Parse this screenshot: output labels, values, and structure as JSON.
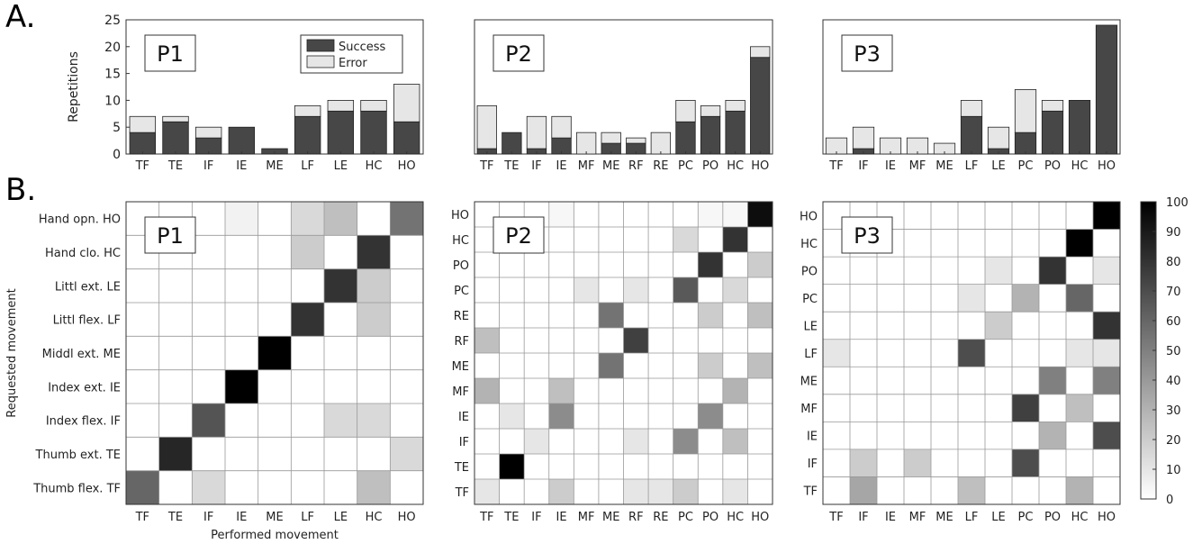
{
  "figure": {
    "panel_a_label": "A.",
    "panel_b_label": "B.",
    "colorbar_ticks": [
      0,
      10,
      20,
      30,
      40,
      50,
      60,
      70,
      80,
      90,
      100
    ]
  },
  "colors": {
    "success": "#474747",
    "error": "#e6e6e6",
    "axis": "#333333",
    "grid": "#999999"
  },
  "chart_data": [
    {
      "type": "bar",
      "title": "P1",
      "ylabel": "Repetitions",
      "xlabel": "",
      "stacked": true,
      "ylim": [
        0,
        25
      ],
      "yticks": [
        0,
        5,
        10,
        15,
        20,
        25
      ],
      "legend_position": "top-right",
      "categories": [
        "TF",
        "TE",
        "IF",
        "IE",
        "ME",
        "LF",
        "LE",
        "HC",
        "HO"
      ],
      "series": [
        {
          "name": "Success",
          "values": [
            4,
            6,
            3,
            5,
            1,
            7,
            8,
            8,
            6
          ]
        },
        {
          "name": "Error",
          "values": [
            3,
            1,
            2,
            0,
            0,
            2,
            2,
            2,
            7
          ]
        }
      ]
    },
    {
      "type": "bar",
      "title": "P2",
      "stacked": true,
      "ylim": [
        0,
        25
      ],
      "categories": [
        "TF",
        "TE",
        "IF",
        "IE",
        "MF",
        "ME",
        "RF",
        "RE",
        "PC",
        "PO",
        "HC",
        "HO"
      ],
      "series": [
        {
          "name": "Success",
          "values": [
            1,
            4,
            1,
            3,
            0,
            2,
            2,
            0,
            6,
            7,
            8,
            18
          ]
        },
        {
          "name": "Error",
          "values": [
            8,
            0,
            6,
            4,
            4,
            2,
            1,
            4,
            4,
            2,
            2,
            2
          ]
        }
      ]
    },
    {
      "type": "bar",
      "title": "P3",
      "stacked": true,
      "ylim": [
        0,
        25
      ],
      "categories": [
        "TF",
        "IF",
        "IE",
        "MF",
        "ME",
        "LF",
        "LE",
        "PC",
        "PO",
        "HC",
        "HO"
      ],
      "series": [
        {
          "name": "Success",
          "values": [
            0,
            1,
            0,
            0,
            0,
            7,
            1,
            4,
            8,
            10,
            24
          ]
        },
        {
          "name": "Error",
          "values": [
            3,
            4,
            3,
            3,
            2,
            3,
            4,
            8,
            2,
            0,
            0
          ]
        }
      ]
    },
    {
      "type": "heatmap",
      "title": "P1",
      "xlabel": "Performed movement",
      "ylabel": "Requested movement",
      "color_range": [
        0,
        100
      ],
      "x_categories": [
        "TF",
        "TE",
        "IF",
        "IE",
        "ME",
        "LF",
        "LE",
        "HC",
        "HO"
      ],
      "y_categories": [
        "Hand opn.  HO",
        "Hand clo.  HC",
        "Littl ext.  LE",
        "Littl flex.  LF",
        "Middl ext.  ME",
        "Index ext.  IE",
        "Index flex.  IF",
        "Thumb ext.  TE",
        "Thumb flex.  TF"
      ],
      "values": [
        [
          0,
          0,
          0,
          5,
          0,
          15,
          25,
          0,
          55
        ],
        [
          0,
          0,
          0,
          0,
          0,
          20,
          0,
          80,
          0
        ],
        [
          0,
          0,
          0,
          0,
          0,
          0,
          80,
          20,
          0
        ],
        [
          0,
          0,
          0,
          0,
          0,
          80,
          0,
          20,
          0
        ],
        [
          0,
          0,
          0,
          0,
          100,
          0,
          0,
          0,
          0
        ],
        [
          0,
          0,
          0,
          100,
          0,
          0,
          0,
          0,
          0
        ],
        [
          0,
          0,
          67,
          0,
          0,
          0,
          15,
          15,
          0
        ],
        [
          0,
          85,
          0,
          0,
          0,
          0,
          0,
          0,
          15
        ],
        [
          60,
          0,
          15,
          0,
          0,
          0,
          0,
          25,
          0
        ]
      ]
    },
    {
      "type": "heatmap",
      "title": "P2",
      "color_range": [
        0,
        100
      ],
      "x_categories": [
        "TF",
        "TE",
        "IF",
        "IE",
        "MF",
        "ME",
        "RF",
        "RE",
        "PC",
        "PO",
        "HC",
        "HO"
      ],
      "y_categories": [
        "HO",
        "HC",
        "PO",
        "PC",
        "RE",
        "RF",
        "ME",
        "MF",
        "IE",
        "IF",
        "TE",
        "TF"
      ],
      "values": [
        [
          0,
          0,
          0,
          3,
          0,
          0,
          0,
          0,
          0,
          3,
          3,
          95
        ],
        [
          0,
          0,
          0,
          0,
          0,
          0,
          0,
          0,
          15,
          0,
          80,
          0
        ],
        [
          0,
          0,
          0,
          0,
          0,
          0,
          0,
          0,
          0,
          80,
          0,
          20
        ],
        [
          0,
          0,
          0,
          0,
          10,
          0,
          10,
          0,
          65,
          0,
          15,
          0
        ],
        [
          0,
          0,
          0,
          0,
          0,
          55,
          0,
          0,
          0,
          20,
          0,
          25
        ],
        [
          25,
          0,
          0,
          0,
          0,
          0,
          75,
          0,
          0,
          0,
          0,
          0
        ],
        [
          0,
          0,
          0,
          0,
          0,
          55,
          0,
          0,
          0,
          20,
          0,
          25
        ],
        [
          30,
          0,
          0,
          25,
          0,
          0,
          0,
          0,
          0,
          0,
          30,
          0
        ],
        [
          0,
          10,
          0,
          45,
          0,
          0,
          0,
          0,
          0,
          45,
          0,
          0
        ],
        [
          0,
          0,
          10,
          0,
          0,
          0,
          10,
          0,
          45,
          0,
          25,
          0
        ],
        [
          0,
          100,
          0,
          0,
          0,
          0,
          0,
          0,
          0,
          0,
          0,
          0
        ],
        [
          10,
          0,
          0,
          20,
          0,
          0,
          10,
          10,
          20,
          0,
          10,
          0
        ]
      ]
    },
    {
      "type": "heatmap",
      "title": "P3",
      "color_range": [
        0,
        100
      ],
      "x_categories": [
        "TF",
        "IF",
        "IE",
        "MF",
        "ME",
        "LF",
        "LE",
        "PC",
        "PO",
        "HC",
        "HO"
      ],
      "y_categories": [
        "HO",
        "HC",
        "PO",
        "PC",
        "LE",
        "LF",
        "ME",
        "MF",
        "IE",
        "IF",
        "TF"
      ],
      "values": [
        [
          0,
          0,
          0,
          0,
          0,
          0,
          0,
          0,
          0,
          0,
          100
        ],
        [
          0,
          0,
          0,
          0,
          0,
          0,
          0,
          0,
          0,
          100,
          0
        ],
        [
          0,
          0,
          0,
          0,
          0,
          0,
          10,
          0,
          80,
          0,
          10
        ],
        [
          0,
          0,
          0,
          0,
          0,
          10,
          0,
          30,
          0,
          60,
          0
        ],
        [
          0,
          0,
          0,
          0,
          0,
          0,
          20,
          0,
          0,
          0,
          80
        ],
        [
          10,
          0,
          0,
          0,
          0,
          70,
          0,
          0,
          0,
          10,
          10
        ],
        [
          0,
          0,
          0,
          0,
          0,
          0,
          0,
          0,
          50,
          0,
          50
        ],
        [
          0,
          0,
          0,
          0,
          0,
          0,
          0,
          75,
          0,
          25,
          0
        ],
        [
          0,
          0,
          0,
          0,
          0,
          0,
          0,
          0,
          30,
          0,
          70
        ],
        [
          0,
          20,
          0,
          20,
          0,
          0,
          0,
          70,
          0,
          0,
          0
        ],
        [
          0,
          35,
          0,
          0,
          0,
          25,
          0,
          0,
          0,
          30,
          0
        ]
      ]
    }
  ]
}
